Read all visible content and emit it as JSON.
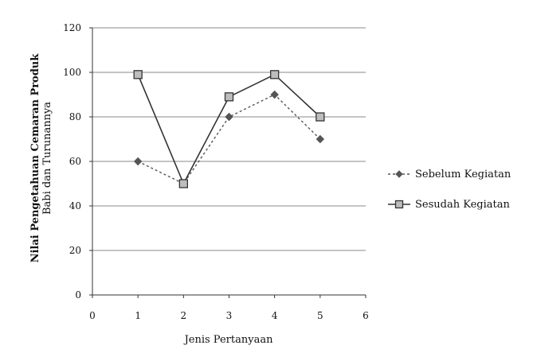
{
  "chart_data": {
    "type": "line",
    "xlabel": "Jenis Pertanyaan",
    "ylabel_line1": "Nilai Pengetahuan Cemaran Produk",
    "ylabel_line2": "Babi dan Turunannya",
    "xlim": [
      0,
      6
    ],
    "ylim": [
      0,
      120
    ],
    "xticks": [
      0,
      1,
      2,
      3,
      4,
      5,
      6
    ],
    "yticks": [
      0,
      20,
      40,
      60,
      80,
      100,
      120
    ],
    "grid": "horizontal",
    "legend_position": "right",
    "series": [
      {
        "name": "Sebelum Kegiatan",
        "marker": "diamond",
        "line_style": "dashed",
        "color": "#555555",
        "x": [
          1,
          2,
          3,
          4,
          5
        ],
        "y": [
          60,
          50,
          80,
          90,
          70
        ]
      },
      {
        "name": "Sesudah Kegiatan",
        "marker": "square",
        "line_style": "solid",
        "color": "#333333",
        "x": [
          1,
          2,
          3,
          4,
          5
        ],
        "y": [
          99,
          50,
          89,
          99,
          80
        ]
      }
    ]
  }
}
